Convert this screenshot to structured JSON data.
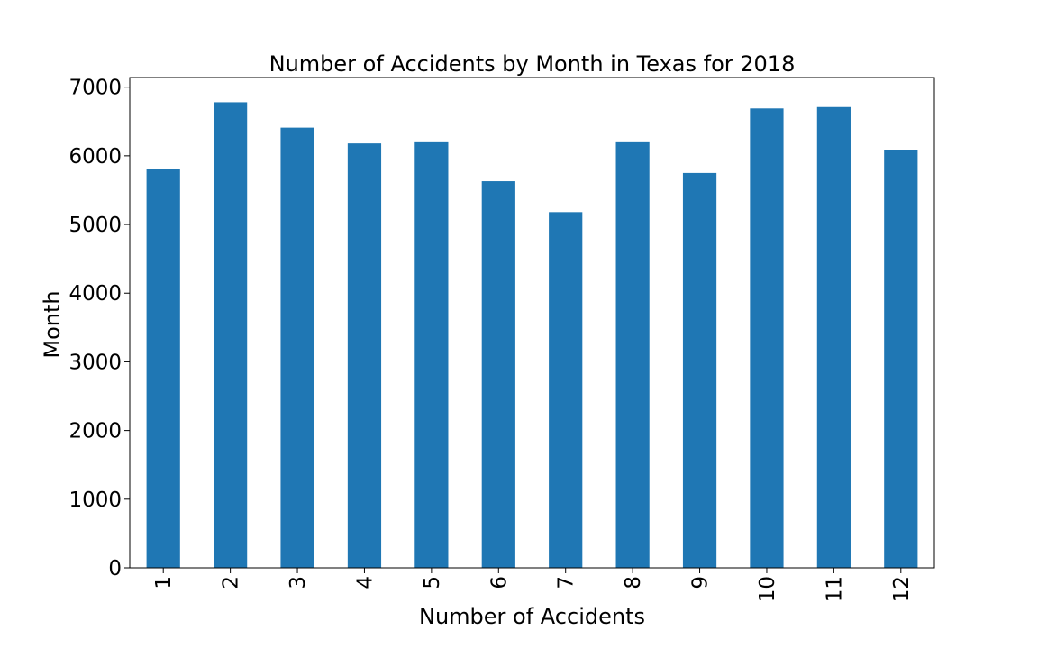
{
  "chart_data": {
    "type": "bar",
    "title": "Number of Accidents by Month in Texas for 2018",
    "xlabel": "Number of Accidents",
    "ylabel": "Month",
    "categories": [
      "1",
      "2",
      "3",
      "4",
      "5",
      "6",
      "7",
      "8",
      "9",
      "10",
      "11",
      "12"
    ],
    "values": [
      5810,
      6780,
      6410,
      6180,
      6210,
      5630,
      5180,
      6210,
      5750,
      6690,
      6710,
      6090
    ],
    "ylim": [
      0,
      7140
    ],
    "yticks": [
      0,
      1000,
      2000,
      3000,
      4000,
      5000,
      6000,
      7000
    ],
    "grid": false,
    "legend": "none",
    "bar_color": "#1f77b4"
  }
}
